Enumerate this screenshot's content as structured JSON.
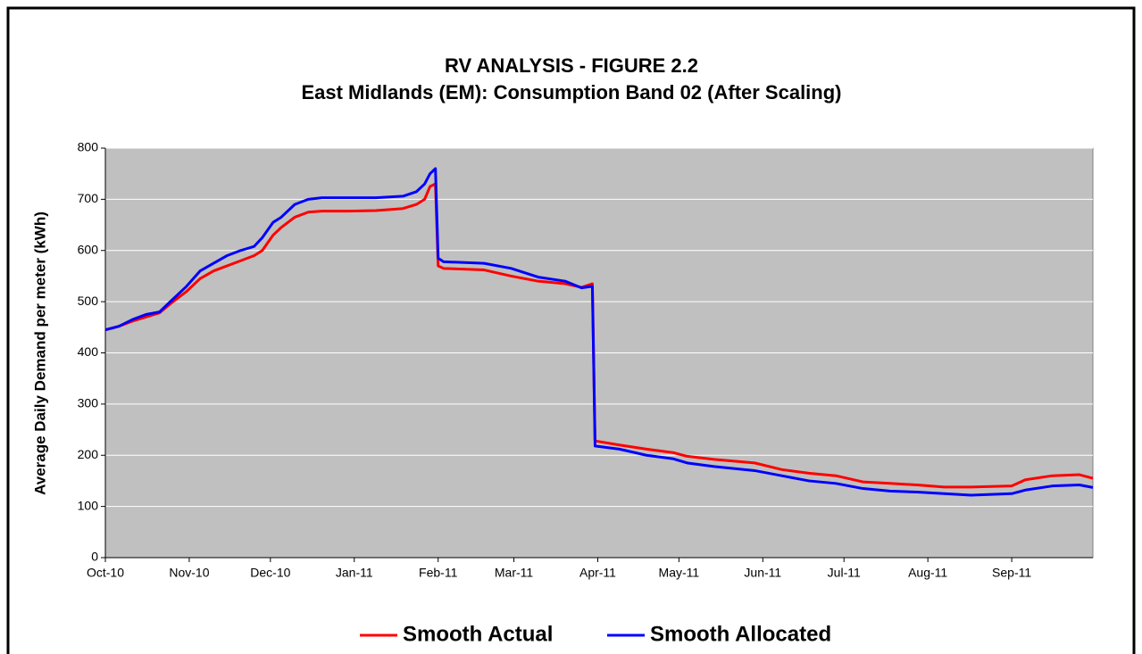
{
  "chart_data": {
    "type": "line",
    "title": "RV ANALYSIS - FIGURE 2.2",
    "subtitle": "East Midlands (EM): Consumption Band 02 (After Scaling)",
    "ylabel": "Average Daily Demand per meter (kWh)",
    "x": [
      0,
      5,
      10,
      15,
      20,
      25,
      30,
      35,
      40,
      45,
      50,
      55,
      58,
      62,
      65,
      70,
      75,
      80,
      90,
      100,
      110,
      115,
      118,
      120,
      122,
      123,
      125,
      140,
      150,
      160,
      170,
      176,
      180,
      181,
      190,
      200,
      210,
      215,
      225,
      240,
      250,
      260,
      270,
      280,
      290,
      300,
      310,
      320,
      335,
      340,
      350,
      360,
      365
    ],
    "series": [
      {
        "name": "Smooth Actual",
        "color": "#ff0000",
        "values": [
          445,
          452,
          462,
          470,
          478,
          500,
          520,
          545,
          560,
          570,
          580,
          590,
          600,
          630,
          645,
          665,
          675,
          677,
          677,
          678,
          682,
          690,
          700,
          725,
          730,
          570,
          565,
          562,
          550,
          540,
          535,
          528,
          535,
          228,
          220,
          212,
          205,
          198,
          192,
          185,
          172,
          165,
          160,
          148,
          145,
          142,
          138,
          138,
          140,
          152,
          160,
          162,
          155
        ]
      },
      {
        "name": "Smooth Allocated",
        "color": "#0000ff",
        "values": [
          445,
          452,
          465,
          475,
          480,
          505,
          530,
          560,
          575,
          590,
          600,
          608,
          625,
          655,
          665,
          690,
          700,
          703,
          703,
          703,
          706,
          715,
          730,
          750,
          760,
          585,
          578,
          575,
          565,
          548,
          540,
          527,
          530,
          218,
          212,
          200,
          193,
          185,
          178,
          170,
          160,
          150,
          145,
          135,
          130,
          128,
          125,
          122,
          125,
          132,
          140,
          142,
          137
        ]
      }
    ],
    "xlim": [
      0,
      365
    ],
    "xticks": [
      {
        "value": 0,
        "label": "Oct-10"
      },
      {
        "value": 31,
        "label": "Nov-10"
      },
      {
        "value": 61,
        "label": "Dec-10"
      },
      {
        "value": 92,
        "label": "Jan-11"
      },
      {
        "value": 123,
        "label": "Feb-11"
      },
      {
        "value": 151,
        "label": "Mar-11"
      },
      {
        "value": 182,
        "label": "Apr-11"
      },
      {
        "value": 212,
        "label": "May-11"
      },
      {
        "value": 243,
        "label": "Jun-11"
      },
      {
        "value": 273,
        "label": "Jul-11"
      },
      {
        "value": 304,
        "label": "Aug-11"
      },
      {
        "value": 335,
        "label": "Sep-11"
      }
    ],
    "ylim": [
      0,
      800
    ],
    "yticks": [
      0,
      100,
      200,
      300,
      400,
      500,
      600,
      700,
      800
    ],
    "grid": true,
    "legend": "bottom"
  }
}
